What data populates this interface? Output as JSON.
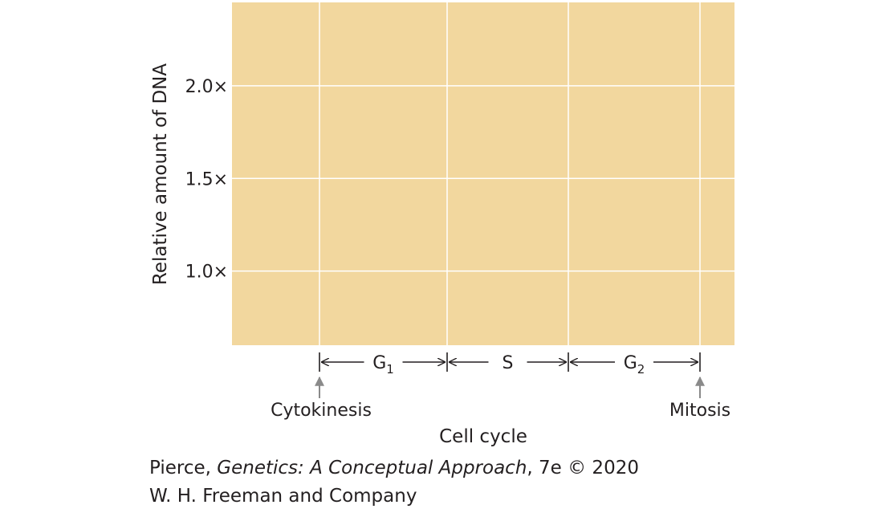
{
  "chart_data": {
    "type": "line",
    "title": "",
    "xlabel": "Cell cycle",
    "ylabel": "Relative amount of DNA",
    "y_tick_labels": [
      "1.0×",
      "1.5×",
      "2.0×"
    ],
    "y_ticks": [
      1.0,
      1.5,
      2.0
    ],
    "ylim": [
      0.6,
      2.45
    ],
    "phases": [
      {
        "label": "G",
        "subscript": "1"
      },
      {
        "label": "S",
        "subscript": ""
      },
      {
        "label": "G",
        "subscript": "2"
      }
    ],
    "markers": {
      "start": "Cytokinesis",
      "end": "Mitosis"
    },
    "series": [],
    "grid": true,
    "plot_bg_color": "#f2d79e",
    "grid_color": "#ffffff"
  },
  "credit": {
    "line1_pre": "Pierce, ",
    "line1_title": "Genetics: A Conceptual Approach",
    "line1_post": ", 7e © 2020",
    "line2": "W. H. Freeman and Company"
  }
}
